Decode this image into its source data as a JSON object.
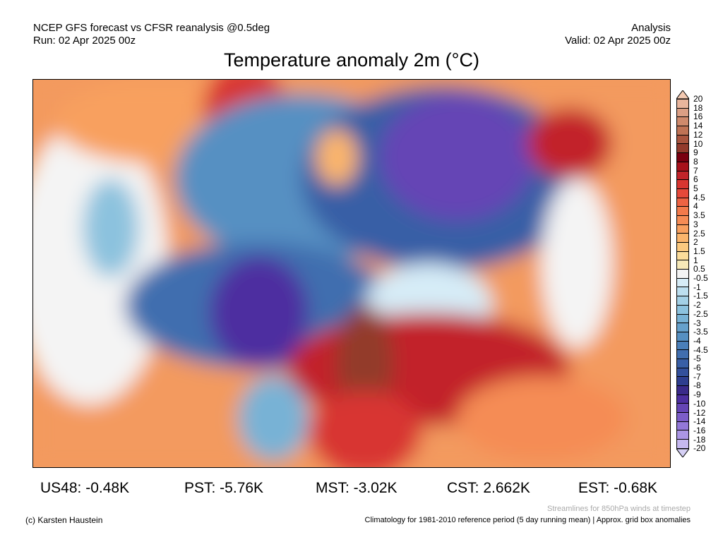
{
  "header": {
    "model": "NCEP GFS forecast vs CFSR reanalysis @0.5deg",
    "run": "Run: 02 Apr 2025 00z",
    "type": "Analysis",
    "valid": "Valid: 02 Apr 2025 00z",
    "title": "Temperature anomaly 2m (°C)"
  },
  "colorbar": {
    "labels": [
      "20",
      "18",
      "16",
      "14",
      "12",
      "10",
      "9",
      "8",
      "7",
      "6",
      "5",
      "4.5",
      "4",
      "3.5",
      "3",
      "2.5",
      "2",
      "1.5",
      "1",
      "0.5",
      "-0.5",
      "-1",
      "-1.5",
      "-2",
      "-2.5",
      "-3",
      "-3.5",
      "-4",
      "-4.5",
      "-5",
      "-6",
      "-7",
      "-8",
      "-9",
      "-10",
      "-12",
      "-14",
      "-16",
      "-18",
      "-20"
    ],
    "colors": [
      "#e9b59c",
      "#dc9f84",
      "#cf8a6c",
      "#bf7355",
      "#a9553e",
      "#933b2c",
      "#7a0010",
      "#a8121b",
      "#c2242a",
      "#d83530",
      "#e6493a",
      "#ee6343",
      "#f27a4b",
      "#f58c55",
      "#f8a05f",
      "#fbb56c",
      "#fcc97f",
      "#fcdc9a",
      "#f7e9b8",
      "#f4f4f4",
      "#d6ecf7",
      "#bcdff0",
      "#a3d0e6",
      "#8cc2de",
      "#78b2d5",
      "#66a1cc",
      "#5690c2",
      "#4a7fb9",
      "#416eaf",
      "#395fa6",
      "#33509c",
      "#2e3e8f",
      "#3a2a8a",
      "#4d2fa0",
      "#6545b5",
      "#7c5dc8",
      "#9378d8",
      "#ab96e5",
      "#c6b8f0"
    ]
  },
  "stats": [
    {
      "label": "US48: -0.48K"
    },
    {
      "label": "PST: -5.76K"
    },
    {
      "label": "MST: -3.02K"
    },
    {
      "label": "CST: 2.662K"
    },
    {
      "label": "EST: -0.68K"
    }
  ],
  "footer": {
    "copyright": "(c) Karsten Haustein",
    "streamlines": "Streamlines for 850hPa winds at timestep",
    "climatology": "Climatology for 1981-2010 reference period (5 day running mean) | Approx. grid box anomalies"
  }
}
